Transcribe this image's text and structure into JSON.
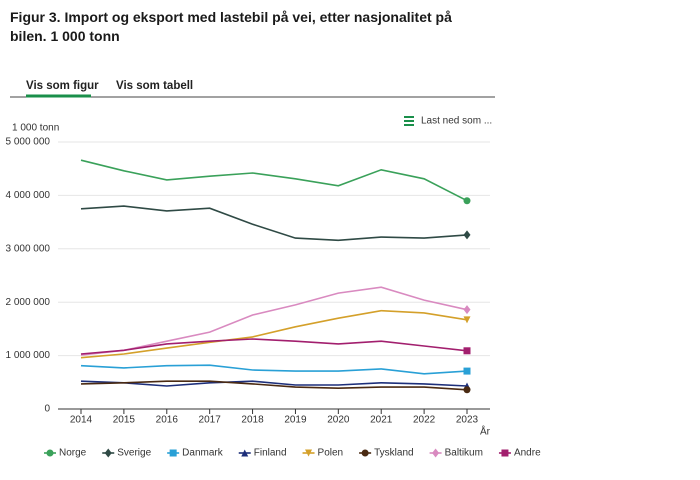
{
  "tabs": [
    "Vis som figur",
    "Vis som tabell"
  ],
  "download": "Last ned som ...",
  "chart_data": {
    "type": "line",
    "title": "Figur 3. Import og eksport med lastebil på vei, etter nasjonalitet på bilen. 1 000 tonn",
    "y_unit_label": "1 000 tonn",
    "x_label": "År",
    "categories": [
      "2014",
      "2015",
      "2016",
      "2017",
      "2018",
      "2019",
      "2020",
      "2021",
      "2022",
      "2023"
    ],
    "ylim": [
      0,
      5000000
    ],
    "yticks": [
      0,
      {
        "value": 1000000,
        "label": "1 000 000"
      },
      {
        "value": 2000000,
        "label": "2 000 000"
      },
      {
        "value": 3000000,
        "label": "3 000 000"
      },
      {
        "value": 4000000,
        "label": "4 000 000"
      },
      {
        "value": 5000000,
        "label": "5 000 000"
      }
    ],
    "grid": true,
    "legend": "bottom",
    "series": [
      {
        "name": "Norge",
        "color": "#3aa15a",
        "marker": "circle",
        "values": [
          4660000,
          4460000,
          4290000,
          4360000,
          4420000,
          4310000,
          4180000,
          4480000,
          4310000,
          3900000
        ]
      },
      {
        "name": "Sverige",
        "color": "#2f4a45",
        "marker": "diamond",
        "values": [
          3750000,
          3800000,
          3710000,
          3760000,
          3460000,
          3200000,
          3160000,
          3220000,
          3200000,
          3260000
        ]
      },
      {
        "name": "Danmark",
        "color": "#29a0d6",
        "marker": "square",
        "values": [
          810000,
          770000,
          810000,
          820000,
          730000,
          710000,
          710000,
          750000,
          660000,
          710000
        ]
      },
      {
        "name": "Finland",
        "color": "#1d2f7a",
        "marker": "triangle",
        "values": [
          520000,
          490000,
          430000,
          490000,
          520000,
          450000,
          450000,
          490000,
          470000,
          430000
        ]
      },
      {
        "name": "Polen",
        "color": "#d4a02a",
        "marker": "triangle-down",
        "values": [
          960000,
          1030000,
          1140000,
          1250000,
          1350000,
          1540000,
          1700000,
          1840000,
          1800000,
          1670000
        ]
      },
      {
        "name": "Tyskland",
        "color": "#4a2a12",
        "marker": "circle",
        "values": [
          470000,
          490000,
          520000,
          520000,
          470000,
          410000,
          390000,
          410000,
          410000,
          360000
        ]
      },
      {
        "name": "Baltikum",
        "color": "#d98ac0",
        "marker": "diamond",
        "values": [
          1010000,
          1100000,
          1270000,
          1440000,
          1760000,
          1950000,
          2170000,
          2280000,
          2040000,
          1860000
        ]
      },
      {
        "name": "Andre",
        "color": "#a21f6e",
        "marker": "square",
        "values": [
          1030000,
          1100000,
          1220000,
          1270000,
          1310000,
          1270000,
          1220000,
          1270000,
          1180000,
          1090000
        ]
      }
    ]
  }
}
